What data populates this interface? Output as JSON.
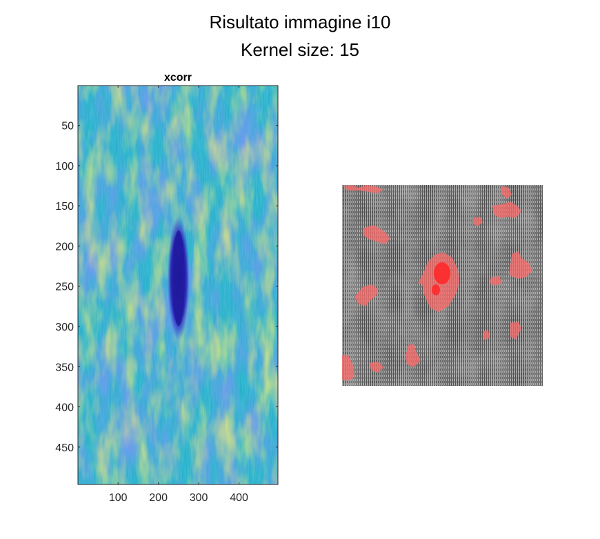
{
  "figure": {
    "title_lines": [
      "Risultato immagine i10",
      "Kernel size: 15"
    ]
  },
  "chart_data": [
    {
      "type": "heatmap",
      "title": "xcorr",
      "xlabel": "",
      "ylabel": "",
      "xlim": [
        0.5,
        496.5
      ],
      "ylim": [
        0.5,
        496.5
      ],
      "y_reversed": true,
      "xticks": [
        100,
        200,
        300,
        400
      ],
      "xtick_labels": [
        "100",
        "200",
        "300",
        "400"
      ],
      "yticks": [
        50,
        100,
        150,
        200,
        250,
        300,
        350,
        400,
        450
      ],
      "ytick_labels": [
        "50",
        "100",
        "150",
        "200",
        "250",
        "300",
        "350",
        "400",
        "450"
      ],
      "colormap": "parula",
      "colors": {
        "background": "#27b2c9",
        "low": "#3a4fe8",
        "high": "#b6c83a",
        "defect": "#1e1a9e"
      },
      "features": [
        {
          "name": "dark-elongated-blob",
          "x_center": 250,
          "y_center": 240,
          "x_halfwidth": 22,
          "y_halfheight": 70
        }
      ]
    },
    {
      "type": "image",
      "title": "",
      "axis": "off",
      "description_colors": {
        "fabric": "#8e8e8e",
        "overlay": "#ff6b6b",
        "defect_core": "#ff2a2a"
      }
    }
  ]
}
